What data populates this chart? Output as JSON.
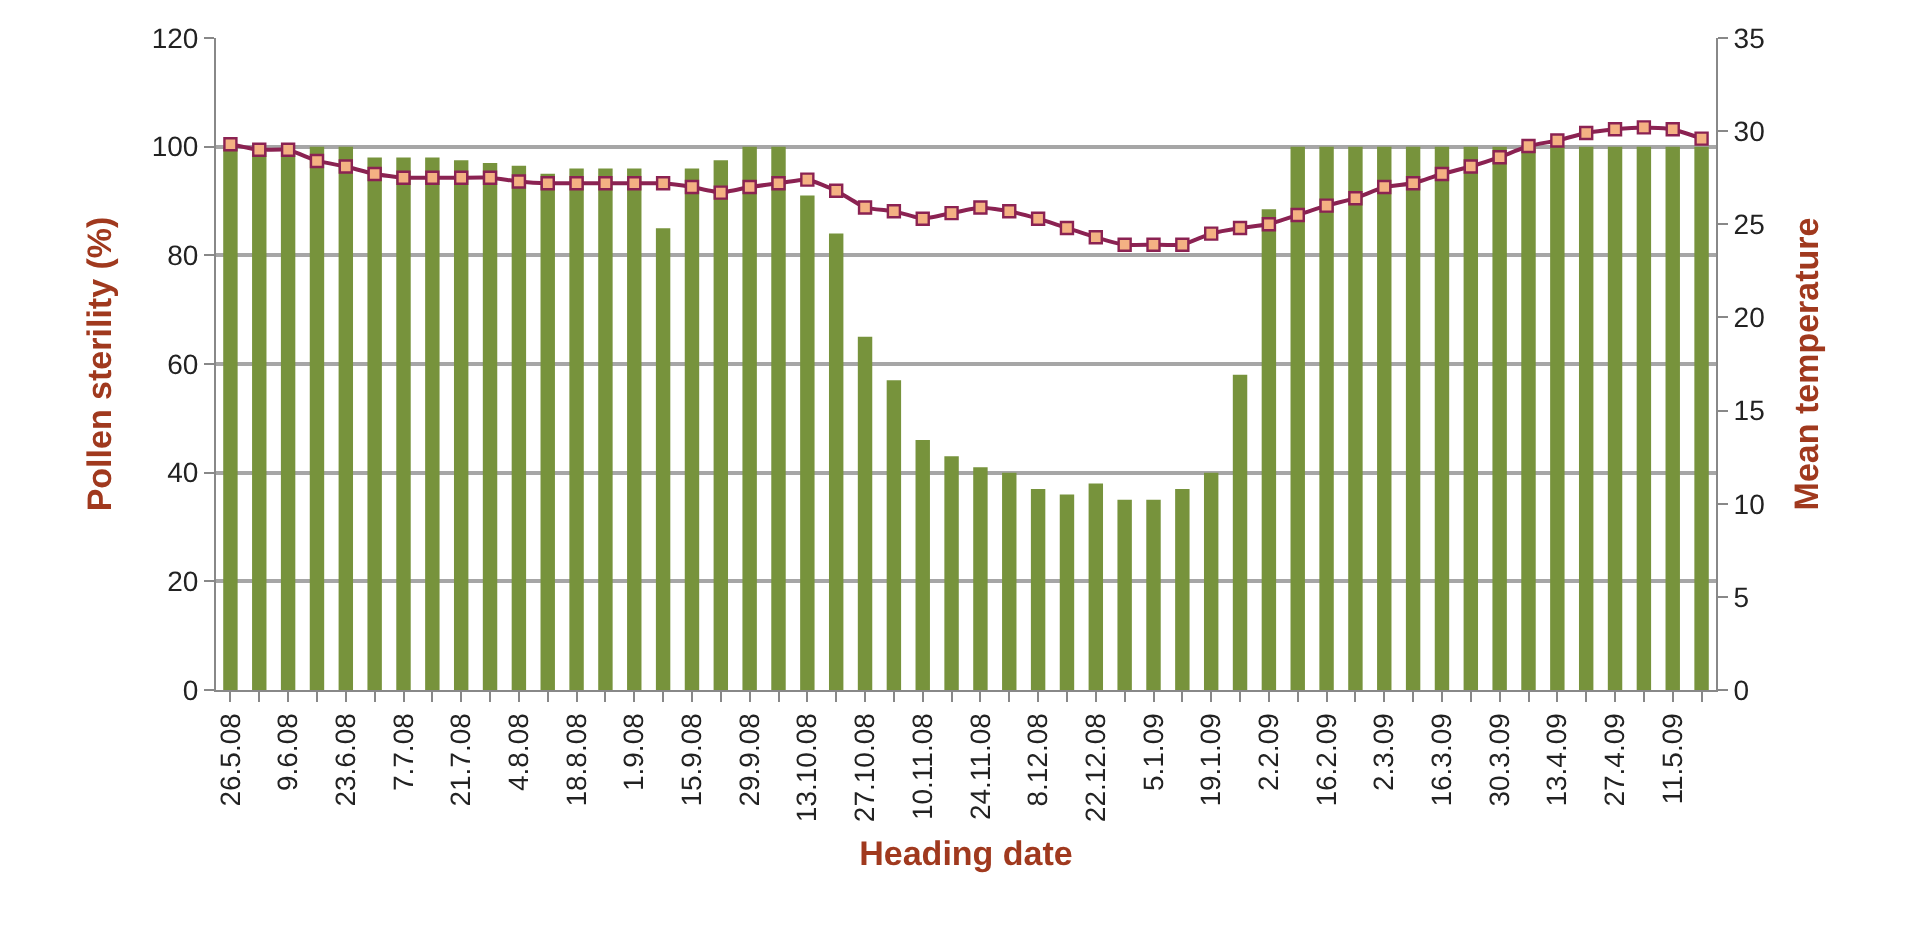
{
  "chart_data": {
    "type": "bar",
    "xlabel": "Heading date",
    "ylabel": "Pollen sterility (%)",
    "y2label": "Mean temperature",
    "categories": [
      "26.5.08",
      null,
      "9.6.08",
      null,
      "23.6.08",
      null,
      "7.7.08",
      null,
      "21.7.08",
      null,
      "4.8.08",
      null,
      "18.8.08",
      null,
      "1.9.08",
      null,
      "15.9.08",
      null,
      "29.9.08",
      null,
      "13.10.08",
      null,
      "27.10.08",
      null,
      "10.11.08",
      null,
      "24.11.08",
      null,
      "8.12.08",
      null,
      "22.12.08",
      null,
      "5.1.09",
      null,
      "19.1.09",
      null,
      "2.2.09",
      null,
      "16.2.09",
      null,
      "2.3.09",
      null,
      "16.3.09",
      null,
      "30.3.09",
      null,
      "13.4.09",
      null,
      "27.4.09",
      null,
      "11.5.09",
      null
    ],
    "series": [
      {
        "color": "#77933c",
        "values": [
          100,
          99,
          99,
          100,
          100,
          98,
          98,
          98,
          97.5,
          97,
          96.5,
          95,
          96,
          96,
          96,
          85,
          96,
          97.5,
          100,
          100,
          91,
          84,
          65,
          57,
          46,
          43,
          41,
          40,
          37,
          36,
          38,
          35,
          35,
          37,
          40,
          58,
          88.5,
          100,
          100,
          100,
          100,
          100,
          100,
          100,
          100,
          100,
          100,
          100,
          100,
          100,
          100,
          100
        ]
      },
      {
        "type": "line",
        "axis": "y2",
        "color": "#8b2252",
        "marker": "square",
        "line_style": "solid",
        "values": [
          29.3,
          29,
          29,
          28.4,
          28.1,
          27.7,
          27.5,
          27.5,
          27.5,
          27.5,
          27.3,
          27.2,
          27.2,
          27.2,
          27.2,
          27.2,
          27,
          26.7,
          27,
          27.2,
          27.4,
          26.8,
          25.9,
          25.7,
          25.3,
          25.6,
          25.9,
          25.7,
          25.3,
          24.8,
          24.3,
          23.9,
          23.9,
          23.9,
          24.5,
          24.8,
          25,
          25.5,
          26,
          26.4,
          27,
          27.2,
          27.7,
          28.1,
          28.6,
          29.2,
          29.5,
          29.9,
          30.1,
          30.2,
          30.1,
          29.6
        ]
      }
    ],
    "ylim": [
      0,
      120
    ],
    "yticks": [
      0,
      20,
      40,
      60,
      80,
      100,
      120
    ],
    "y2lim": [
      0,
      35
    ],
    "y2ticks": [
      0,
      5,
      10,
      15,
      20,
      25,
      30,
      35
    ],
    "grid": "y"
  }
}
